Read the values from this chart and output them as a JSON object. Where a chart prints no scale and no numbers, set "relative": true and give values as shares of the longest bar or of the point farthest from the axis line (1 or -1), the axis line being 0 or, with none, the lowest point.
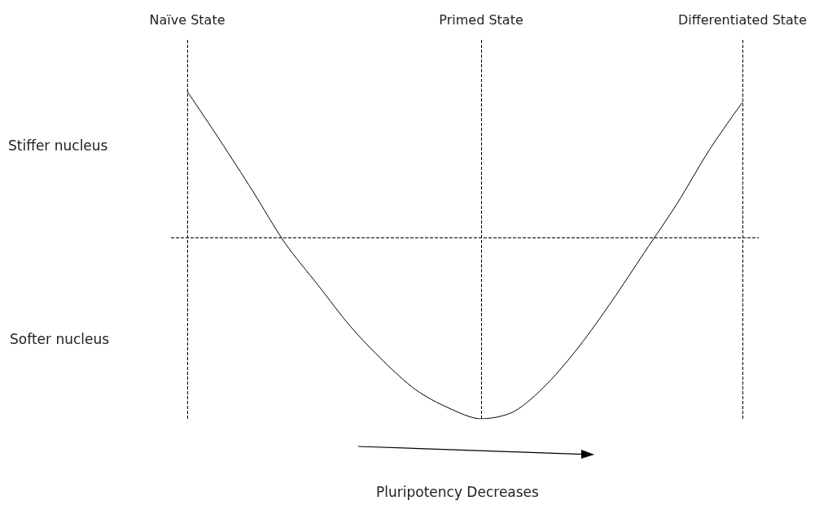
{
  "chart_data": {
    "type": "line",
    "relative": true,
    "categories": [
      "Naïve State",
      null,
      null,
      null,
      null,
      null,
      null,
      null,
      null,
      "Primed State",
      null,
      null,
      null,
      null,
      null,
      null,
      null,
      "Differentiated State"
    ],
    "values": [
      0.81,
      0.54,
      0.26,
      -0.03,
      -0.26,
      -0.49,
      -0.68,
      -0.84,
      -0.94,
      -1,
      -0.96,
      -0.81,
      -0.6,
      -0.35,
      -0.08,
      0.19,
      0.49,
      0.75
    ],
    "color": "#000000",
    "tick_labels": "x",
    "marker": "none",
    "line_style": "solid",
    "ref_lines": [
      {
        "axis": "x",
        "value": "Naïve State",
        "line_style": "dashed",
        "color": "#000000"
      },
      {
        "axis": "x",
        "value": "Primed State",
        "line_style": "dashed",
        "color": "#000000"
      },
      {
        "axis": "x",
        "value": "Differentiated State",
        "line_style": "dashed",
        "color": "#000000"
      },
      {
        "axis": "y",
        "value": 0,
        "line_style": "dashed",
        "color": "#000000"
      }
    ],
    "annotations": [
      "Stiffer nucleus",
      "Softer nucleus",
      "Pluripotency Decreases"
    ]
  }
}
